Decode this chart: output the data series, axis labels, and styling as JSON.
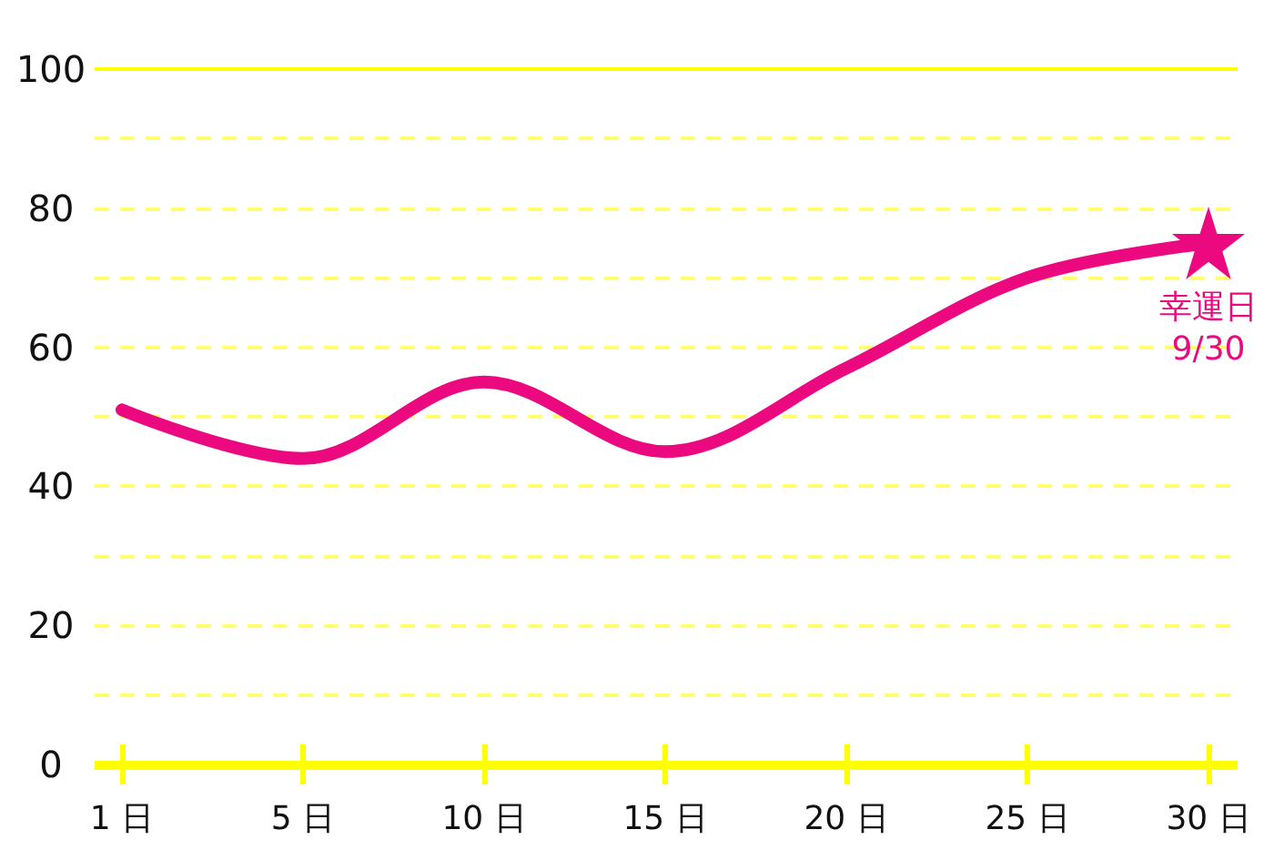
{
  "chart_data": {
    "type": "line",
    "categories": [
      "1 日",
      "5 日",
      "10 日",
      "15 日",
      "20 日",
      "25 日",
      "30 日"
    ],
    "series": [
      {
        "color": "#ec087f",
        "values": [
          51,
          44,
          55,
          45,
          57,
          70,
          75
        ]
      },
      {
        "type": "scatter",
        "x": [
          "30 日"
        ],
        "values": [
          75
        ],
        "color": "#ec087f",
        "marker": "star"
      }
    ],
    "ylim": [
      0,
      100
    ],
    "yticks": [
      0,
      {
        "value": 10,
        "label": null
      },
      20,
      {
        "value": 30,
        "label": null
      },
      40,
      {
        "value": 50,
        "label": null
      },
      60,
      {
        "value": 70,
        "label": null
      },
      80,
      {
        "value": 90,
        "label": null
      },
      100
    ],
    "grid": "y",
    "marker": "none",
    "line_style": "solid",
    "annotations": [
      {
        "text": "幸運日\n9/30",
        "x": "30 日",
        "y": 75
      }
    ]
  }
}
